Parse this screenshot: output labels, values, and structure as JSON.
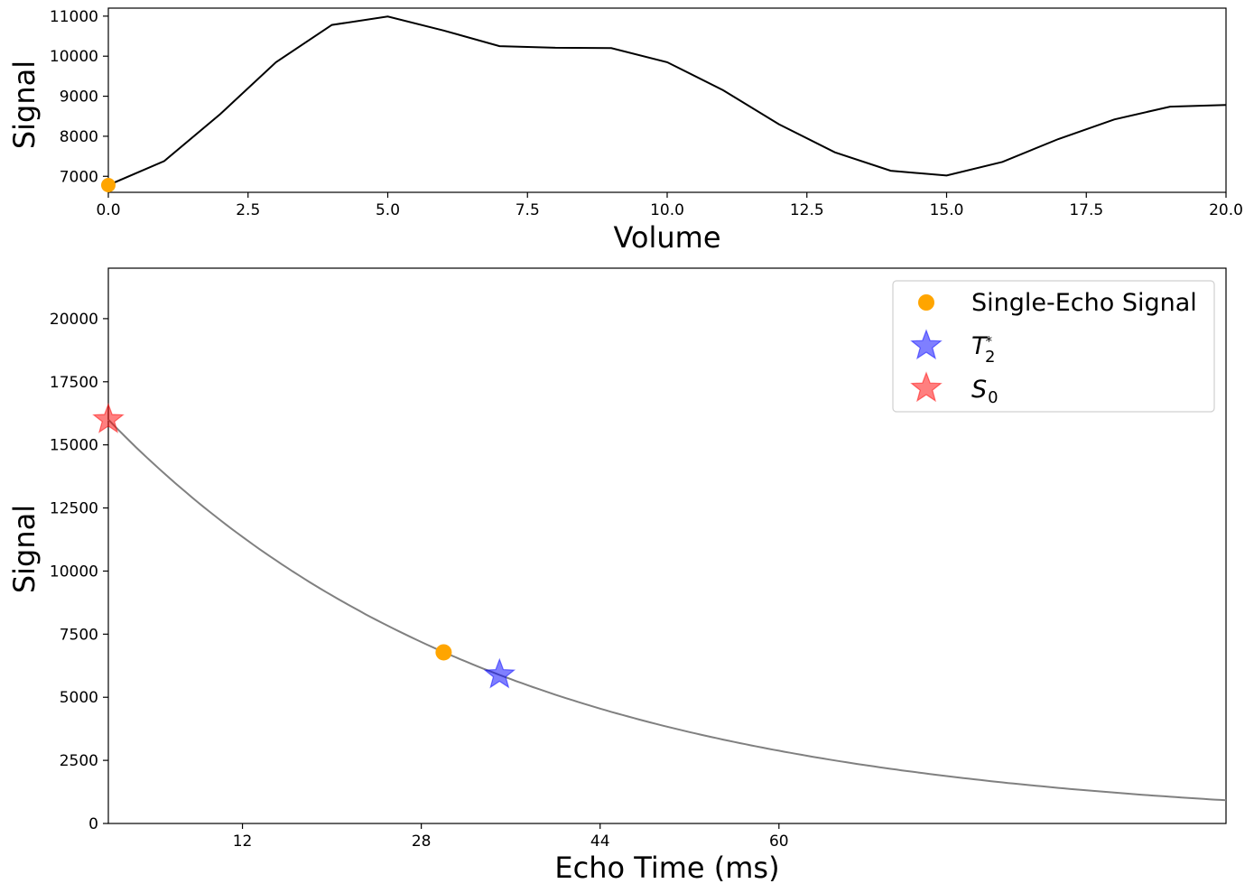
{
  "chart_data": [
    {
      "type": "line",
      "xlabel": "Volume",
      "ylabel": "Signal",
      "xlim": [
        0,
        20
      ],
      "ylim": [
        6600,
        11200
      ],
      "xticks": [
        "0.0",
        "2.5",
        "5.0",
        "7.5",
        "10.0",
        "12.5",
        "15.0",
        "17.5",
        "20.0"
      ],
      "xtick_values": [
        0,
        2.5,
        5,
        7.5,
        10,
        12.5,
        15,
        17.5,
        20
      ],
      "yticks": [
        "7000",
        "8000",
        "9000",
        "10000",
        "11000"
      ],
      "ytick_values": [
        7000,
        8000,
        9000,
        10000,
        11000
      ],
      "grid": false,
      "line_color": "#000000",
      "x": [
        0,
        1,
        2,
        3,
        4,
        5,
        6,
        7,
        8,
        9,
        10,
        11,
        12,
        13,
        14,
        15,
        16,
        17,
        18,
        19,
        20
      ],
      "y": [
        6780,
        7380,
        8550,
        9850,
        10780,
        10990,
        10640,
        10250,
        10210,
        10200,
        9850,
        9150,
        8300,
        7600,
        7140,
        7020,
        7360,
        7930,
        8420,
        8740,
        8780
      ],
      "marker": {
        "x": 0,
        "y": 6780,
        "color": "#FFA500"
      }
    },
    {
      "type": "line",
      "xlabel": "Echo Time (ms)",
      "ylabel": "Signal",
      "xlim": [
        0,
        100
      ],
      "ylim": [
        0,
        22000
      ],
      "xticks": [
        "12",
        "28",
        "44",
        "60"
      ],
      "xtick_values": [
        12,
        28,
        44,
        60
      ],
      "yticks": [
        "0",
        "2500",
        "5000",
        "7500",
        "10000",
        "12500",
        "15000",
        "17500",
        "20000"
      ],
      "ytick_values": [
        0,
        2500,
        5000,
        7500,
        10000,
        12500,
        15000,
        17500,
        20000
      ],
      "grid": false,
      "curve": {
        "S0": 16000,
        "T2star": 35,
        "color": "#808080"
      },
      "series": [
        {
          "name": "Single-Echo Signal",
          "marker": "circle",
          "color": "#FFA500",
          "points": [
            [
              30,
              6780
            ]
          ]
        },
        {
          "name": "T*2",
          "marker": "star",
          "color": "#0000FF",
          "alpha": 0.5,
          "points": [
            [
              35,
              5890
            ]
          ]
        },
        {
          "name": "S0",
          "marker": "star",
          "color": "#FF0000",
          "alpha": 0.5,
          "points": [
            [
              0,
              16000
            ]
          ]
        }
      ],
      "legend": {
        "placement": "upper-right",
        "items": [
          "Single-Echo Signal",
          "T",
          "S"
        ]
      }
    }
  ]
}
